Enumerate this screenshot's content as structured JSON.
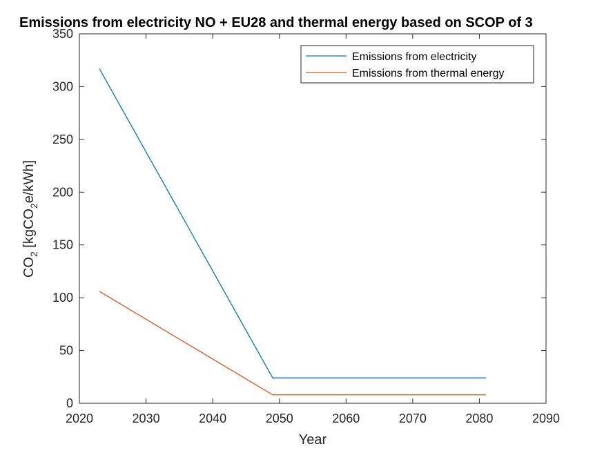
{
  "chart_data": {
    "type": "line",
    "title": "Emissions from electricity NO + EU28 and thermal energy based on SCOP of 3",
    "xlabel": "Year",
    "ylabel": {
      "prefix": "CO",
      "sub1": "2",
      "mid": " [kgCO",
      "sub2": "2",
      "suffix": "e/kWh]"
    },
    "xlim": [
      2020,
      2090
    ],
    "ylim": [
      0,
      350
    ],
    "xticks": [
      2020,
      2030,
      2040,
      2050,
      2060,
      2070,
      2080,
      2090
    ],
    "yticks": [
      0,
      50,
      100,
      150,
      200,
      250,
      300,
      350
    ],
    "grid": false,
    "legend_position": "top-right",
    "series": [
      {
        "name": "Emissions from electricity",
        "color": "#0072BD",
        "x": [
          2023,
          2049,
          2081
        ],
        "y": [
          317,
          24,
          24
        ]
      },
      {
        "name": "Emissions from thermal energy",
        "color": "#D95319",
        "x": [
          2023,
          2049,
          2081
        ],
        "y": [
          106,
          8,
          8
        ]
      }
    ]
  }
}
